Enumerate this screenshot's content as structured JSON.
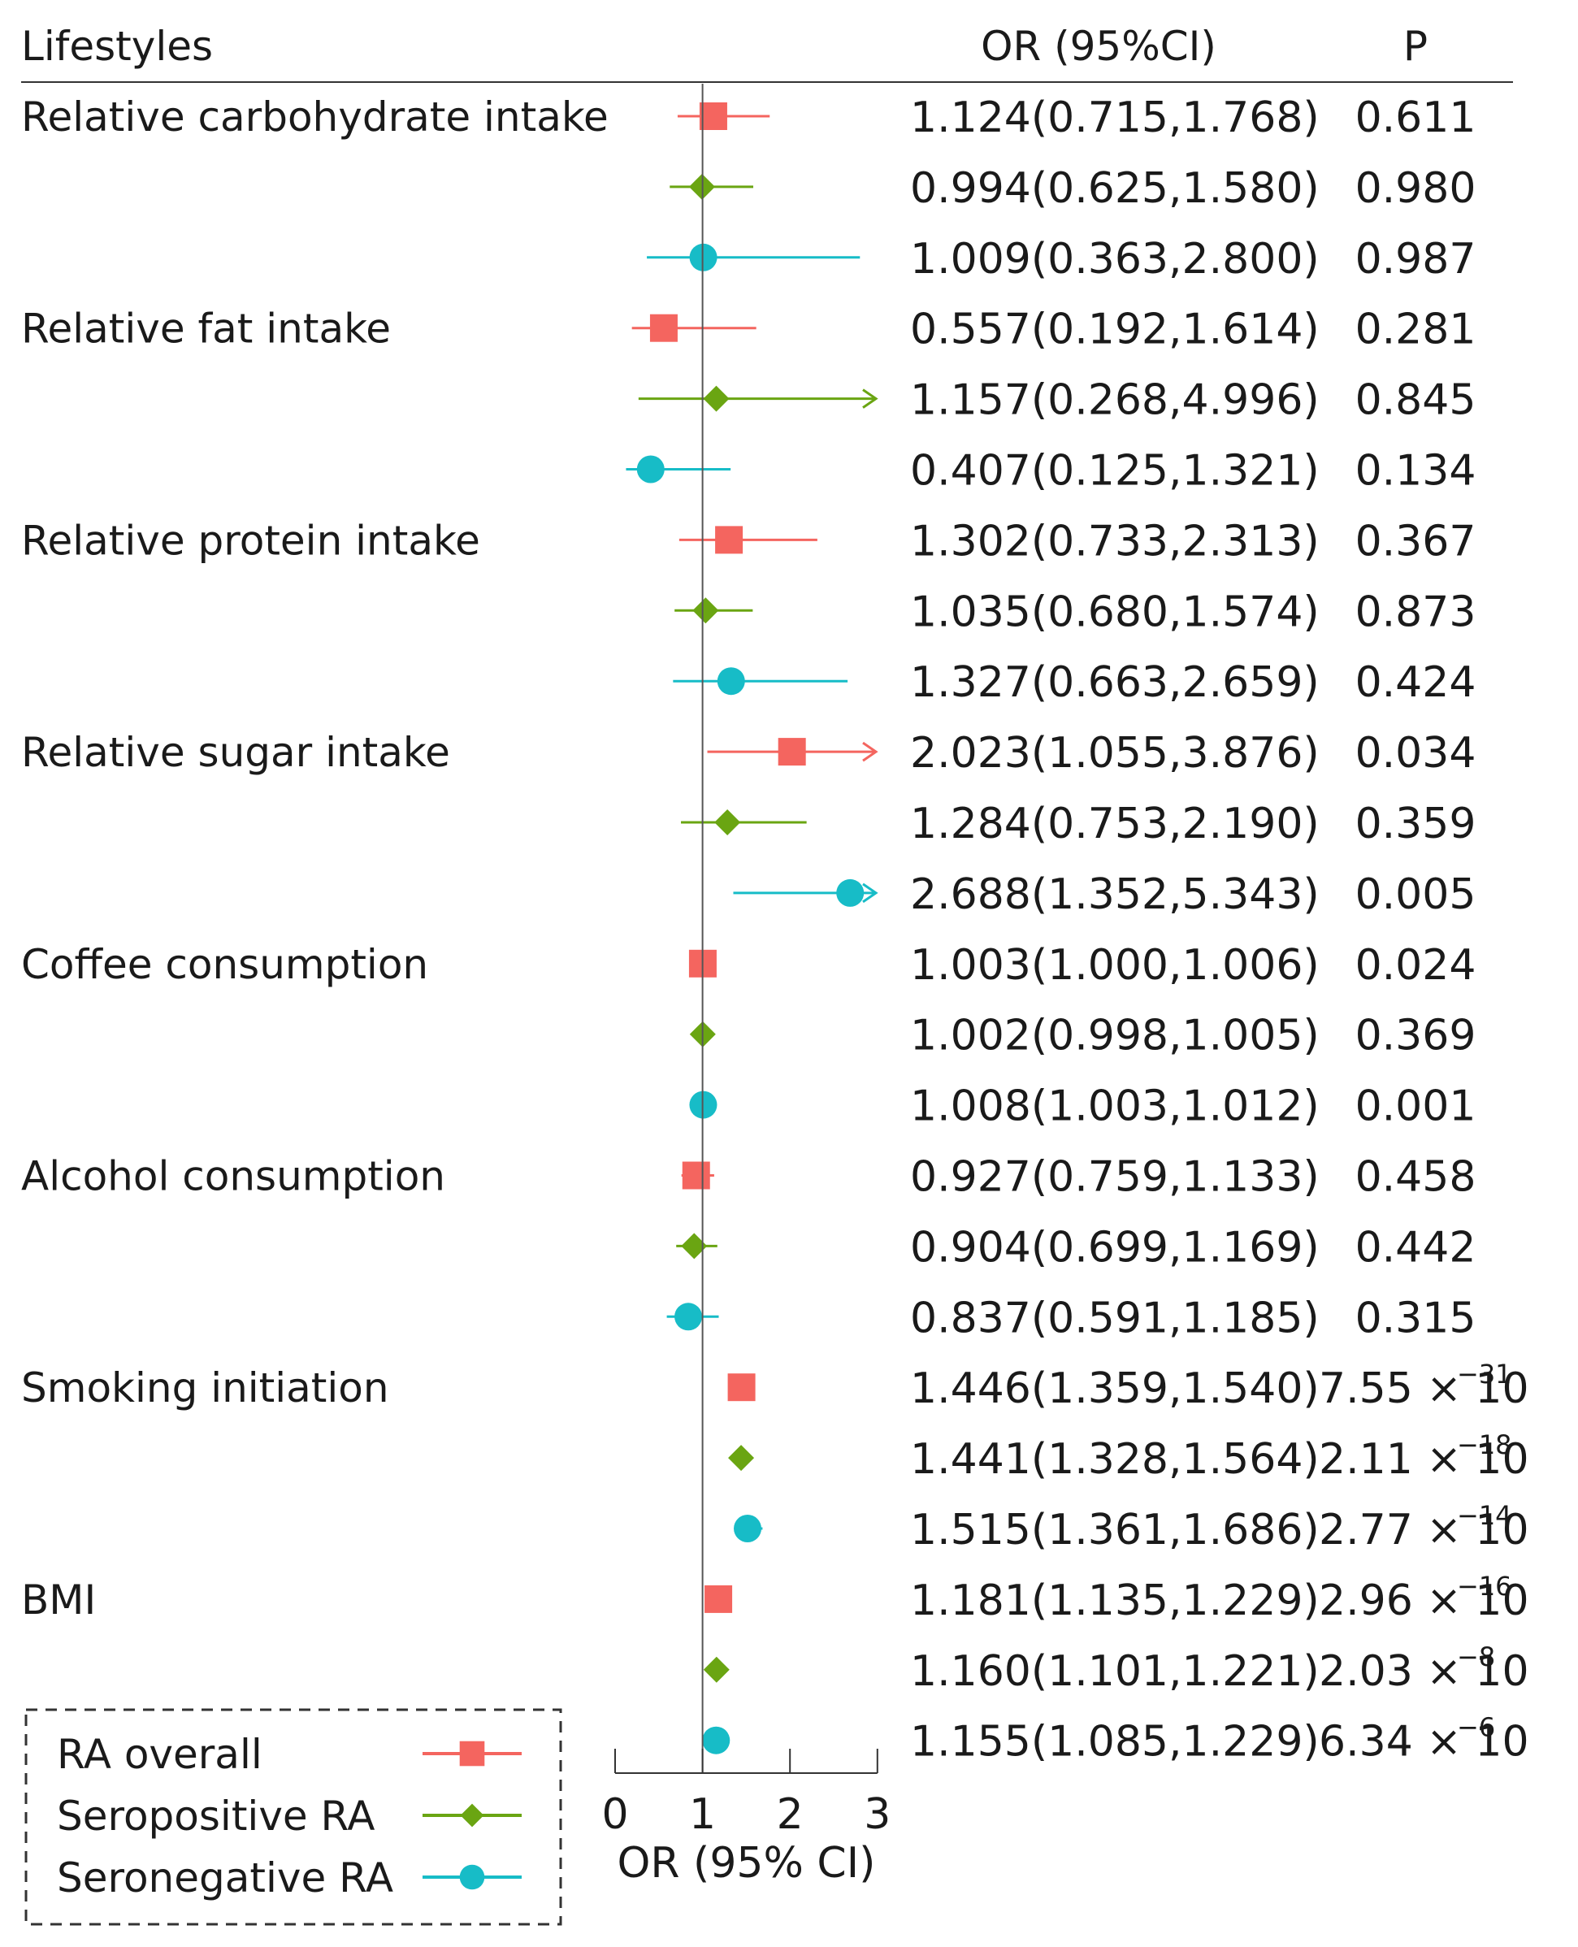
{
  "chart_data": {
    "type": "forest",
    "header": {
      "label_col": "Lifestyles",
      "or_col": "OR (95%CI)",
      "p_col": "P"
    },
    "xlabel": "OR (95% CI)",
    "xlim": [
      0,
      3
    ],
    "xticks": [
      "0",
      "1",
      "2",
      "3"
    ],
    "reference_line": 1,
    "series": [
      {
        "name": "RA overall",
        "color": "#f4655f",
        "marker": "square"
      },
      {
        "name": "Seropositive RA",
        "color": "#6aa512",
        "marker": "diamond"
      },
      {
        "name": "Seronegative RA",
        "color": "#17bcc7",
        "marker": "circle"
      }
    ],
    "rows": [
      {
        "group": "Relative carbohydrate intake",
        "series": 0,
        "or": 1.124,
        "lo": 0.715,
        "hi": 1.768,
        "ci_text": "1.124(0.715,1.768)",
        "p": "0.611"
      },
      {
        "group": "",
        "series": 1,
        "or": 0.994,
        "lo": 0.625,
        "hi": 1.58,
        "ci_text": "0.994(0.625,1.580)",
        "p": "0.980"
      },
      {
        "group": "",
        "series": 2,
        "or": 1.009,
        "lo": 0.363,
        "hi": 2.8,
        "ci_text": "1.009(0.363,2.800)",
        "p": "0.987"
      },
      {
        "group": "Relative fat intake",
        "series": 0,
        "or": 0.557,
        "lo": 0.192,
        "hi": 1.614,
        "ci_text": "0.557(0.192,1.614)",
        "p": "0.281"
      },
      {
        "group": "",
        "series": 1,
        "or": 1.157,
        "lo": 0.268,
        "hi": 4.996,
        "ci_text": "1.157(0.268,4.996)",
        "p": "0.845"
      },
      {
        "group": "",
        "series": 2,
        "or": 0.407,
        "lo": 0.125,
        "hi": 1.321,
        "ci_text": "0.407(0.125,1.321)",
        "p": "0.134"
      },
      {
        "group": "Relative protein intake",
        "series": 0,
        "or": 1.302,
        "lo": 0.733,
        "hi": 2.313,
        "ci_text": "1.302(0.733,2.313)",
        "p": "0.367"
      },
      {
        "group": "",
        "series": 1,
        "or": 1.035,
        "lo": 0.68,
        "hi": 1.574,
        "ci_text": "1.035(0.680,1.574)",
        "p": "0.873"
      },
      {
        "group": "",
        "series": 2,
        "or": 1.327,
        "lo": 0.663,
        "hi": 2.659,
        "ci_text": "1.327(0.663,2.659)",
        "p": "0.424"
      },
      {
        "group": "Relative sugar intake",
        "series": 0,
        "or": 2.023,
        "lo": 1.055,
        "hi": 3.876,
        "ci_text": "2.023(1.055,3.876)",
        "p": "0.034"
      },
      {
        "group": "",
        "series": 1,
        "or": 1.284,
        "lo": 0.753,
        "hi": 2.19,
        "ci_text": "1.284(0.753,2.190)",
        "p": "0.359"
      },
      {
        "group": "",
        "series": 2,
        "or": 2.688,
        "lo": 1.352,
        "hi": 5.343,
        "ci_text": "2.688(1.352,5.343)",
        "p": "0.005"
      },
      {
        "group": "Coffee consumption",
        "series": 0,
        "or": 1.003,
        "lo": 1.0,
        "hi": 1.006,
        "ci_text": "1.003(1.000,1.006)",
        "p": "0.024"
      },
      {
        "group": "",
        "series": 1,
        "or": 1.002,
        "lo": 0.998,
        "hi": 1.005,
        "ci_text": "1.002(0.998,1.005)",
        "p": "0.369"
      },
      {
        "group": "",
        "series": 2,
        "or": 1.008,
        "lo": 1.003,
        "hi": 1.012,
        "ci_text": "1.008(1.003,1.012)",
        "p": "0.001"
      },
      {
        "group": "Alcohol consumption",
        "series": 0,
        "or": 0.927,
        "lo": 0.759,
        "hi": 1.133,
        "ci_text": "0.927(0.759,1.133)",
        "p": "0.458"
      },
      {
        "group": "",
        "series": 1,
        "or": 0.904,
        "lo": 0.699,
        "hi": 1.169,
        "ci_text": "0.904(0.699,1.169)",
        "p": "0.442"
      },
      {
        "group": "",
        "series": 2,
        "or": 0.837,
        "lo": 0.591,
        "hi": 1.185,
        "ci_text": "0.837(0.591,1.185)",
        "p": "0.315"
      },
      {
        "group": "Smoking initiation",
        "series": 0,
        "or": 1.446,
        "lo": 1.359,
        "hi": 1.54,
        "ci_text": "1.446(1.359,1.540)",
        "p": "7.55 × 10",
        "p_exp": "−31"
      },
      {
        "group": "",
        "series": 1,
        "or": 1.441,
        "lo": 1.328,
        "hi": 1.564,
        "ci_text": "1.441(1.328,1.564)",
        "p": "2.11 × 10",
        "p_exp": "−18"
      },
      {
        "group": "",
        "series": 2,
        "or": 1.515,
        "lo": 1.361,
        "hi": 1.686,
        "ci_text": "1.515(1.361,1.686)",
        "p": "2.77 × 10",
        "p_exp": "−14"
      },
      {
        "group": "BMI",
        "series": 0,
        "or": 1.181,
        "lo": 1.135,
        "hi": 1.229,
        "ci_text": "1.181(1.135,1.229)",
        "p": "2.96 × 10",
        "p_exp": "−16"
      },
      {
        "group": "",
        "series": 1,
        "or": 1.16,
        "lo": 1.101,
        "hi": 1.221,
        "ci_text": "1.160(1.101,1.221)",
        "p": "2.03 × 10",
        "p_exp": "−8"
      },
      {
        "group": "",
        "series": 2,
        "or": 1.155,
        "lo": 1.085,
        "hi": 1.229,
        "ci_text": "1.155(1.085,1.229)",
        "p": "6.34 × 10",
        "p_exp": "−6"
      }
    ]
  }
}
